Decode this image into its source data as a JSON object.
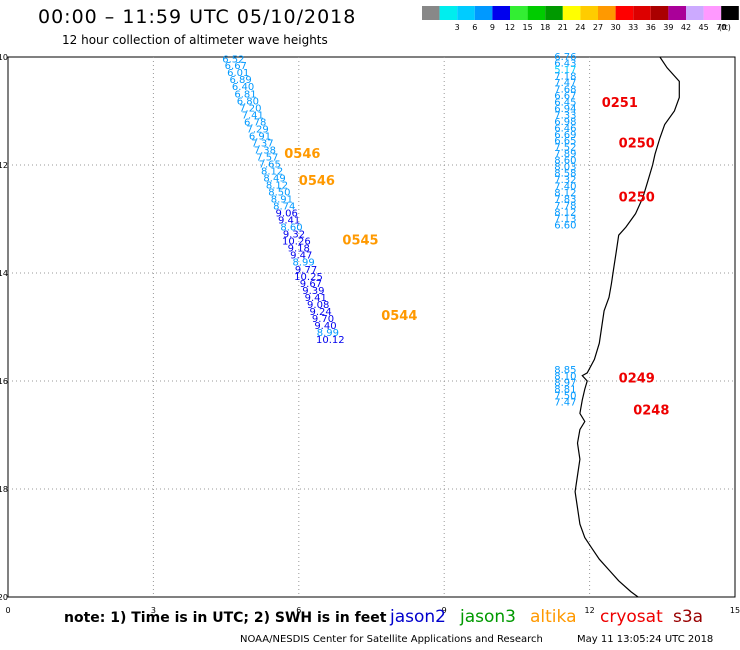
{
  "header": {
    "title": "00:00 – 11:59 UTC 05/10/2018",
    "subtitle": "12 hour collection of altimeter wave heights"
  },
  "footer": {
    "note": "note: 1) Time is in UTC; 2) SWH is in feet",
    "credit": "NOAA/NESDIS Center for Satellite Applications and Research",
    "timestamp": "May 11 13:05:24 UTC 2018"
  },
  "satellites": [
    {
      "name": "jason2",
      "color": "#0000cc"
    },
    {
      "name": "jason3",
      "color": "#009900"
    },
    {
      "name": "altika",
      "color": "#ff9900"
    },
    {
      "name": "cryosat",
      "color": "#ee0000"
    },
    {
      "name": "s3a",
      "color": "#990000"
    }
  ],
  "legend": {
    "unit": "(ft)",
    "bins": [
      {
        "label": "",
        "color": "#888888"
      },
      {
        "label": "3",
        "color": "#00eeee"
      },
      {
        "label": "6",
        "color": "#00ccff"
      },
      {
        "label": "9",
        "color": "#0099ff"
      },
      {
        "label": "12",
        "color": "#0000ee"
      },
      {
        "label": "15",
        "color": "#33ee33"
      },
      {
        "label": "18",
        "color": "#00cc00"
      },
      {
        "label": "21",
        "color": "#009900"
      },
      {
        "label": "24",
        "color": "#ffff00"
      },
      {
        "label": "27",
        "color": "#ffcc00"
      },
      {
        "label": "30",
        "color": "#ff9900"
      },
      {
        "label": "33",
        "color": "#ff0000"
      },
      {
        "label": "36",
        "color": "#dd0000"
      },
      {
        "label": "39",
        "color": "#aa0000"
      },
      {
        "label": "42",
        "color": "#aa0099"
      },
      {
        "label": "45",
        "color": "#ccaaff"
      },
      {
        "label": "70",
        "color": "#ff99ff"
      },
      {
        "label": "",
        "color": "#000000"
      }
    ]
  },
  "chart_data": {
    "type": "scatter",
    "xlim": [
      0,
      15
    ],
    "ylim": [
      -20,
      -10
    ],
    "xticks": [
      "0",
      "3",
      "6",
      "9",
      "12",
      "15"
    ],
    "yticks": [
      "-10",
      "-12",
      "-14",
      "-16",
      "-18",
      "-20"
    ],
    "grid": true,
    "coastline": [
      [
        13.45,
        -10.0
      ],
      [
        13.6,
        -10.2
      ],
      [
        13.85,
        -10.45
      ],
      [
        13.85,
        -10.75
      ],
      [
        13.75,
        -11.0
      ],
      [
        13.55,
        -11.25
      ],
      [
        13.45,
        -11.5
      ],
      [
        13.35,
        -11.8
      ],
      [
        13.3,
        -12.0
      ],
      [
        13.2,
        -12.3
      ],
      [
        13.1,
        -12.6
      ],
      [
        12.95,
        -12.9
      ],
      [
        12.75,
        -13.15
      ],
      [
        12.6,
        -13.3
      ],
      [
        12.55,
        -13.6
      ],
      [
        12.5,
        -13.9
      ],
      [
        12.45,
        -14.2
      ],
      [
        12.4,
        -14.45
      ],
      [
        12.3,
        -14.7
      ],
      [
        12.25,
        -15.0
      ],
      [
        12.2,
        -15.3
      ],
      [
        12.1,
        -15.6
      ],
      [
        11.95,
        -15.85
      ],
      [
        11.85,
        -15.9
      ],
      [
        11.95,
        -16.0
      ],
      [
        11.9,
        -16.15
      ],
      [
        11.85,
        -16.35
      ],
      [
        11.8,
        -16.6
      ],
      [
        11.9,
        -16.75
      ],
      [
        11.8,
        -16.9
      ],
      [
        11.75,
        -17.15
      ],
      [
        11.8,
        -17.45
      ],
      [
        11.75,
        -17.75
      ],
      [
        11.7,
        -18.05
      ],
      [
        11.75,
        -18.35
      ],
      [
        11.8,
        -18.65
      ],
      [
        11.9,
        -18.9
      ],
      [
        12.05,
        -19.1
      ],
      [
        12.2,
        -19.3
      ],
      [
        12.4,
        -19.5
      ],
      [
        12.6,
        -19.7
      ],
      [
        12.85,
        -19.9
      ],
      [
        13.0,
        -20.0
      ]
    ],
    "tracks": [
      {
        "satellite": "altika",
        "points": [
          {
            "lon": 4.65,
            "lat": -10.05,
            "swh": 6.52
          },
          {
            "lon": 4.7,
            "lat": -10.17,
            "swh": 6.67
          },
          {
            "lon": 4.75,
            "lat": -10.3,
            "swh": 6.01
          },
          {
            "lon": 4.8,
            "lat": -10.43,
            "swh": 6.89
          },
          {
            "lon": 4.85,
            "lat": -10.56,
            "swh": 6.4
          },
          {
            "lon": 4.9,
            "lat": -10.69,
            "swh": 6.81
          },
          {
            "lon": 4.95,
            "lat": -10.82,
            "swh": 6.8
          },
          {
            "lon": 5.0,
            "lat": -10.95,
            "swh": 7.2
          },
          {
            "lon": 5.05,
            "lat": -11.08,
            "swh": 7.41
          },
          {
            "lon": 5.1,
            "lat": -11.21,
            "swh": 6.78
          },
          {
            "lon": 5.15,
            "lat": -11.34,
            "swh": 7.29
          },
          {
            "lon": 5.2,
            "lat": -11.47,
            "swh": 6.91
          },
          {
            "lon": 5.25,
            "lat": -11.6,
            "swh": 7.37
          },
          {
            "lon": 5.3,
            "lat": -11.73,
            "swh": 7.38
          },
          {
            "lon": 5.35,
            "lat": -11.86,
            "swh": 7.57
          },
          {
            "lon": 5.4,
            "lat": -11.99,
            "swh": 7.65
          },
          {
            "lon": 5.45,
            "lat": -12.12,
            "swh": 8.12
          },
          {
            "lon": 5.5,
            "lat": -12.25,
            "swh": 8.49
          },
          {
            "lon": 5.55,
            "lat": -12.38,
            "swh": 8.12
          },
          {
            "lon": 5.6,
            "lat": -12.51,
            "swh": 8.5
          },
          {
            "lon": 5.65,
            "lat": -12.64,
            "swh": 8.91
          },
          {
            "lon": 5.7,
            "lat": -12.77,
            "swh": 8.74
          },
          {
            "lon": 5.75,
            "lat": -12.9,
            "swh": 9.06
          },
          {
            "lon": 5.8,
            "lat": -13.03,
            "swh": 9.41
          },
          {
            "lon": 5.85,
            "lat": -13.16,
            "swh": 8.6
          },
          {
            "lon": 5.9,
            "lat": -13.29,
            "swh": 9.32
          },
          {
            "lon": 5.95,
            "lat": -13.42,
            "swh": 10.26
          },
          {
            "lon": 6.0,
            "lat": -13.55,
            "swh": 9.18
          },
          {
            "lon": 6.05,
            "lat": -13.68,
            "swh": 9.47
          },
          {
            "lon": 6.1,
            "lat": -13.81,
            "swh": 8.99
          },
          {
            "lon": 6.15,
            "lat": -13.94,
            "swh": 9.77
          },
          {
            "lon": 6.2,
            "lat": -14.07,
            "swh": 10.25
          },
          {
            "lon": 6.25,
            "lat": -14.2,
            "swh": 9.67
          },
          {
            "lon": 6.3,
            "lat": -14.33,
            "swh": 9.39
          },
          {
            "lon": 6.35,
            "lat": -14.46,
            "swh": 9.41
          },
          {
            "lon": 6.4,
            "lat": -14.59,
            "swh": 9.08
          },
          {
            "lon": 6.45,
            "lat": -14.72,
            "swh": 9.24
          },
          {
            "lon": 6.5,
            "lat": -14.85,
            "swh": 9.7
          },
          {
            "lon": 6.55,
            "lat": -14.98,
            "swh": 9.4
          },
          {
            "lon": 6.6,
            "lat": -15.11,
            "swh": 8.99
          },
          {
            "lon": 6.65,
            "lat": -15.24,
            "swh": 10.12
          }
        ]
      },
      {
        "satellite": "cryosat",
        "points": [
          {
            "lon": 11.5,
            "lat": -10.0,
            "swh": 6.76
          },
          {
            "lon": 11.5,
            "lat": -10.12,
            "swh": 6.43
          },
          {
            "lon": 11.5,
            "lat": -10.24,
            "swh": 5.17
          },
          {
            "lon": 11.5,
            "lat": -10.36,
            "swh": 7.18
          },
          {
            "lon": 11.5,
            "lat": -10.48,
            "swh": 7.47
          },
          {
            "lon": 11.5,
            "lat": -10.6,
            "swh": 7.68
          },
          {
            "lon": 11.5,
            "lat": -10.72,
            "swh": 6.67
          },
          {
            "lon": 11.5,
            "lat": -10.84,
            "swh": 6.45
          },
          {
            "lon": 11.5,
            "lat": -10.96,
            "swh": 6.94
          },
          {
            "lon": 11.5,
            "lat": -11.08,
            "swh": 7.33
          },
          {
            "lon": 11.5,
            "lat": -11.2,
            "swh": 6.98
          },
          {
            "lon": 11.5,
            "lat": -11.32,
            "swh": 6.46
          },
          {
            "lon": 11.5,
            "lat": -11.44,
            "swh": 6.69
          },
          {
            "lon": 11.5,
            "lat": -11.56,
            "swh": 6.65
          },
          {
            "lon": 11.5,
            "lat": -11.68,
            "swh": 7.52
          },
          {
            "lon": 11.5,
            "lat": -11.8,
            "swh": 7.89
          },
          {
            "lon": 11.5,
            "lat": -11.92,
            "swh": 8.6
          },
          {
            "lon": 11.5,
            "lat": -12.04,
            "swh": 8.03
          },
          {
            "lon": 11.5,
            "lat": -12.16,
            "swh": 8.58
          },
          {
            "lon": 11.5,
            "lat": -12.28,
            "swh": 7.32
          },
          {
            "lon": 11.5,
            "lat": -12.4,
            "swh": 7.4
          },
          {
            "lon": 11.5,
            "lat": -12.52,
            "swh": 8.12
          },
          {
            "lon": 11.5,
            "lat": -12.64,
            "swh": 7.83
          },
          {
            "lon": 11.5,
            "lat": -12.76,
            "swh": 7.78
          },
          {
            "lon": 11.5,
            "lat": -12.88,
            "swh": 8.12
          },
          {
            "lon": 11.5,
            "lat": -13.0,
            "swh": 7.13
          },
          {
            "lon": 11.5,
            "lat": -13.12,
            "swh": 6.6
          },
          {
            "lon": 11.5,
            "lat": -15.8,
            "swh": 8.85
          },
          {
            "lon": 11.5,
            "lat": -15.92,
            "swh": 8.1
          },
          {
            "lon": 11.5,
            "lat": -16.04,
            "swh": 8.97
          },
          {
            "lon": 11.5,
            "lat": -16.16,
            "swh": 8.81
          },
          {
            "lon": 11.5,
            "lat": -16.28,
            "swh": 7.5
          },
          {
            "lon": 11.5,
            "lat": -16.4,
            "swh": 7.47
          }
        ]
      }
    ],
    "pass_labels": [
      {
        "text": "0546",
        "satellite": "altika",
        "lon": 5.7,
        "lat": -11.8
      },
      {
        "text": "0546",
        "satellite": "altika",
        "lon": 6.0,
        "lat": -12.3
      },
      {
        "text": "0545",
        "satellite": "altika",
        "lon": 6.9,
        "lat": -13.4
      },
      {
        "text": "0544",
        "satellite": "altika",
        "lon": 7.7,
        "lat": -14.8
      },
      {
        "text": "0251",
        "satellite": "cryosat",
        "lon": 12.25,
        "lat": -10.85
      },
      {
        "text": "0250",
        "satellite": "cryosat",
        "lon": 12.6,
        "lat": -11.6
      },
      {
        "text": "0250",
        "satellite": "cryosat",
        "lon": 12.6,
        "lat": -12.6
      },
      {
        "text": "0249",
        "satellite": "cryosat",
        "lon": 12.6,
        "lat": -15.95
      },
      {
        "text": "0248",
        "satellite": "cryosat",
        "lon": 12.9,
        "lat": -16.55
      }
    ]
  }
}
